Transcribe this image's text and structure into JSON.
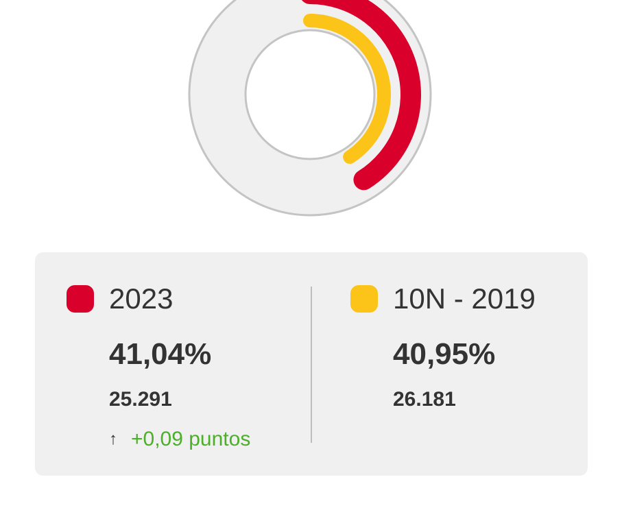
{
  "chart_data": {
    "type": "pie",
    "variant": "concentric-rings",
    "series": [
      {
        "name": "2023",
        "value": 41.04,
        "votes": "25.291",
        "color": "#d9002b",
        "percent_label": "41,04%"
      },
      {
        "name": "10N - 2019",
        "value": 40.95,
        "votes": "26.181",
        "color": "#fcc419",
        "percent_label": "40,95%"
      }
    ],
    "track_color": "#f0f0f0",
    "track_border_color": "#c4c4c4"
  },
  "legend": {
    "current": {
      "label": "2023",
      "percent": "41,04%",
      "votes": "25.291",
      "delta_arrow": "↑",
      "delta_text": "+0,09 puntos",
      "color": "#d9002b"
    },
    "previous": {
      "label": "10N - 2019",
      "percent": "40,95%",
      "votes": "26.181",
      "color": "#fcc419"
    }
  }
}
